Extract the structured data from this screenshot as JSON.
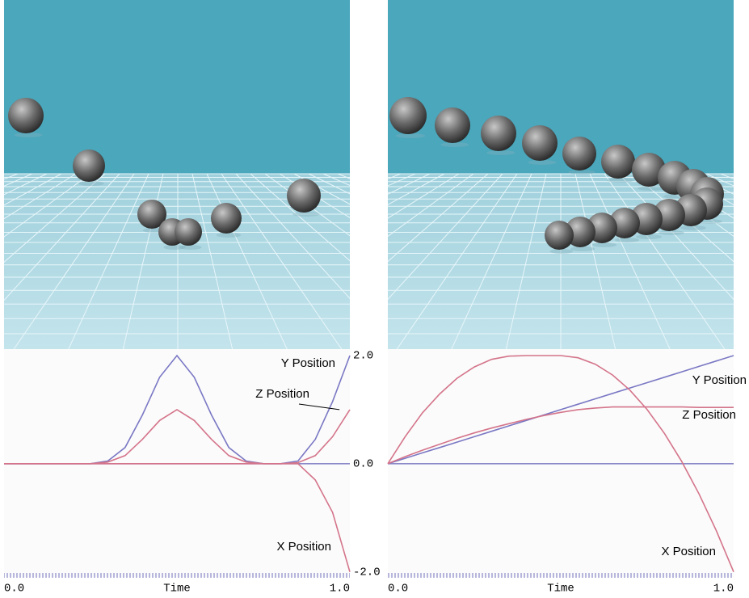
{
  "chart_data": [
    {
      "type": "line",
      "x_label": "Time",
      "x": [
        0,
        0.05,
        0.1,
        0.15,
        0.2,
        0.25,
        0.3,
        0.35,
        0.4,
        0.45,
        0.5,
        0.55,
        0.6,
        0.65,
        0.7,
        0.75,
        0.8,
        0.85,
        0.9,
        0.95,
        1.0
      ],
      "xlim": [
        0,
        1
      ],
      "xticks": [
        {
          "value": 0,
          "label": "0.0"
        },
        {
          "value": 1,
          "label": "1.0"
        }
      ],
      "ylim": [
        -2.05,
        2.0
      ],
      "yticks": [
        {
          "value": 2,
          "label": "2.0"
        },
        {
          "value": 0,
          "label": "0.0"
        },
        {
          "value": -2,
          "label": "-2.0"
        }
      ],
      "series": [
        {
          "name": "Y Position",
          "color": "#7a78c4",
          "values": [
            0,
            0,
            0,
            0,
            0,
            0,
            0.05,
            0.3,
            0.9,
            1.6,
            2.0,
            1.6,
            0.9,
            0.3,
            0.05,
            0,
            0,
            0.05,
            0.45,
            1.15,
            2.0
          ]
        },
        {
          "name": "Z Position",
          "color": "#d4748a",
          "values": [
            0,
            0,
            0,
            0,
            0,
            0,
            0.03,
            0.15,
            0.45,
            0.8,
            1.0,
            0.8,
            0.45,
            0.15,
            0.03,
            0,
            0,
            0.02,
            0.15,
            0.5,
            1.0
          ]
        },
        {
          "name": "X Position",
          "color": "#d4748a",
          "values": [
            0,
            0,
            0,
            0,
            0,
            0,
            0,
            0,
            0,
            0,
            0,
            0,
            0,
            0,
            0,
            0,
            0,
            0,
            -0.3,
            -0.9,
            -2.0
          ]
        }
      ]
    },
    {
      "type": "line",
      "x_label": "Time",
      "x": [
        0,
        0.05,
        0.1,
        0.15,
        0.2,
        0.25,
        0.3,
        0.35,
        0.4,
        0.45,
        0.5,
        0.55,
        0.6,
        0.65,
        0.7,
        0.75,
        0.8,
        0.85,
        0.9,
        0.95,
        1.0
      ],
      "xlim": [
        0,
        1
      ],
      "xticks": [
        {
          "value": 0,
          "label": "0.0"
        },
        {
          "value": 1,
          "label": "1.0"
        }
      ],
      "ylim": [
        -2.05,
        2.0
      ],
      "series": [
        {
          "name": "Y Position",
          "color": "#7a78c4",
          "values": [
            0,
            0.1,
            0.2,
            0.3,
            0.4,
            0.5,
            0.6,
            0.7,
            0.8,
            0.9,
            1.0,
            1.1,
            1.2,
            1.3,
            1.4,
            1.5,
            1.6,
            1.7,
            1.8,
            1.9,
            2.0
          ]
        },
        {
          "name": "Z Position",
          "color": "#d4748a",
          "values": [
            0,
            0.13,
            0.25,
            0.36,
            0.47,
            0.57,
            0.66,
            0.74,
            0.82,
            0.89,
            0.95,
            1.0,
            1.03,
            1.05,
            1.05,
            1.05,
            1.05,
            1.05,
            1.04,
            1.04,
            1.04
          ]
        },
        {
          "name": "X Position",
          "color": "#d4748a",
          "values": [
            0,
            0.5,
            0.94,
            1.29,
            1.58,
            1.79,
            1.93,
            1.99,
            2.0,
            2.0,
            2.0,
            1.96,
            1.84,
            1.64,
            1.36,
            1.0,
            0.56,
            0.04,
            -0.56,
            -1.24,
            -2.0
          ]
        }
      ]
    }
  ]
}
